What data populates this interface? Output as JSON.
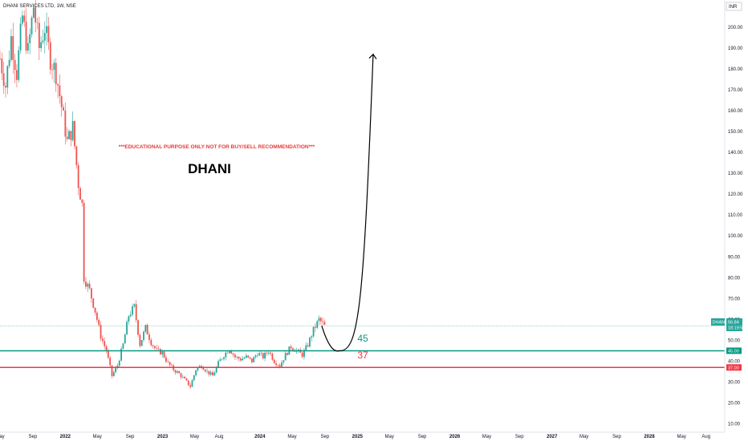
{
  "header": {
    "symbol_title": "DHANI SERVICES LTD, 1W, NSE",
    "currency": "INR"
  },
  "annotations": {
    "disclaimer": "***EDUCATIONAL PURPOSE ONLY NOT FOR BUY/SELL RECOMMENDATION***",
    "title": "DHANI",
    "support_label": "45",
    "stop_label": "37"
  },
  "price_tags": {
    "current_symbol": "DHANI",
    "current_price": "56.84",
    "countdown": "18:19:52",
    "support_price": "45.00",
    "stop_price": "37.00"
  },
  "colors": {
    "up": "#26a69a",
    "down": "#ef5350",
    "support_line": "#089981",
    "stop_line": "#f23645",
    "disclaimer": "#e53935",
    "projection": "#000000"
  },
  "chart_data": {
    "type": "candlestick",
    "title": "DHANI",
    "symbol": "DHANI SERVICES LTD, 1W, NSE",
    "currency": "INR",
    "y_ticks": [
      10,
      20,
      30,
      40,
      50,
      60,
      70,
      80,
      90,
      100,
      110,
      120,
      130,
      140,
      150,
      160,
      170,
      180,
      190,
      200
    ],
    "y_tick_labels": [
      "10.00",
      "20.00",
      "30.00",
      "40.00",
      "50.00",
      "60.00",
      "70.00",
      "80.00",
      "90.00",
      "100.00",
      "110.00",
      "120.00",
      "130.00",
      "140.00",
      "150.00",
      "160.00",
      "170.00",
      "180.00",
      "190.00",
      "200.00"
    ],
    "ylim": [
      6,
      213
    ],
    "x_range": [
      "2021-05-01",
      "2028-10-10"
    ],
    "x_ticks": [
      {
        "date": "2021-05-01",
        "label": "May"
      },
      {
        "date": "2021-09-01",
        "label": "Sep"
      },
      {
        "date": "2022-01-01",
        "label": "2022",
        "year": true
      },
      {
        "date": "2022-05-01",
        "label": "May"
      },
      {
        "date": "2022-09-01",
        "label": "Sep"
      },
      {
        "date": "2023-01-01",
        "label": "2023",
        "year": true
      },
      {
        "date": "2023-05-01",
        "label": "May"
      },
      {
        "date": "2023-08-01",
        "label": "Aug"
      },
      {
        "date": "2024-01-01",
        "label": "2024",
        "year": true
      },
      {
        "date": "2024-05-01",
        "label": "May"
      },
      {
        "date": "2024-09-01",
        "label": "Sep"
      },
      {
        "date": "2025-01-01",
        "label": "2025",
        "year": true
      },
      {
        "date": "2025-05-01",
        "label": "May"
      },
      {
        "date": "2025-09-01",
        "label": "Sep"
      },
      {
        "date": "2026-01-01",
        "label": "2026",
        "year": true
      },
      {
        "date": "2026-05-01",
        "label": "May"
      },
      {
        "date": "2026-09-01",
        "label": "Sep"
      },
      {
        "date": "2027-01-01",
        "label": "2027",
        "year": true
      },
      {
        "date": "2027-05-01",
        "label": "May"
      },
      {
        "date": "2027-09-01",
        "label": "Sep"
      },
      {
        "date": "2028-01-01",
        "label": "2028",
        "year": true
      },
      {
        "date": "2028-05-01",
        "label": "May"
      },
      {
        "date": "2028-08-01",
        "label": "Aug"
      }
    ],
    "price_path": [
      [
        "2021-05-01",
        185
      ],
      [
        "2021-05-22",
        172
      ],
      [
        "2021-06-12",
        195
      ],
      [
        "2021-07-03",
        178
      ],
      [
        "2021-07-24",
        205
      ],
      [
        "2021-08-14",
        188
      ],
      [
        "2021-09-04",
        210
      ],
      [
        "2021-09-25",
        190
      ],
      [
        "2021-10-16",
        200
      ],
      [
        "2021-11-06",
        185
      ],
      [
        "2021-11-27",
        178
      ],
      [
        "2021-12-18",
        162
      ],
      [
        "2022-01-08",
        145
      ],
      [
        "2022-01-29",
        152
      ],
      [
        "2022-02-19",
        125
      ],
      [
        "2022-03-05",
        115
      ],
      [
        "2022-03-12",
        80
      ],
      [
        "2022-04-02",
        74
      ],
      [
        "2022-04-23",
        64
      ],
      [
        "2022-05-14",
        52
      ],
      [
        "2022-06-04",
        45
      ],
      [
        "2022-06-25",
        33
      ],
      [
        "2022-07-16",
        38
      ],
      [
        "2022-08-06",
        48
      ],
      [
        "2022-08-27",
        62
      ],
      [
        "2022-09-17",
        66
      ],
      [
        "2022-10-08",
        48
      ],
      [
        "2022-10-29",
        56
      ],
      [
        "2022-11-19",
        49
      ],
      [
        "2022-12-10",
        45
      ],
      [
        "2022-12-31",
        44
      ],
      [
        "2023-01-21",
        39
      ],
      [
        "2023-02-11",
        36
      ],
      [
        "2023-03-04",
        34
      ],
      [
        "2023-03-25",
        31
      ],
      [
        "2023-04-15",
        28
      ],
      [
        "2023-05-06",
        36
      ],
      [
        "2023-05-27",
        38
      ],
      [
        "2023-06-17",
        35
      ],
      [
        "2023-07-08",
        33
      ],
      [
        "2023-07-29",
        39
      ],
      [
        "2023-08-19",
        43
      ],
      [
        "2023-09-09",
        46
      ],
      [
        "2023-09-30",
        42
      ],
      [
        "2023-10-21",
        41
      ],
      [
        "2023-11-11",
        42
      ],
      [
        "2023-12-02",
        40
      ],
      [
        "2023-12-23",
        44
      ],
      [
        "2024-01-13",
        42
      ],
      [
        "2024-02-03",
        45
      ],
      [
        "2024-02-24",
        40
      ],
      [
        "2024-03-16",
        38
      ],
      [
        "2024-04-06",
        43
      ],
      [
        "2024-04-27",
        47
      ],
      [
        "2024-05-18",
        45
      ],
      [
        "2024-06-08",
        43
      ],
      [
        "2024-06-29",
        48
      ],
      [
        "2024-07-20",
        55
      ],
      [
        "2024-08-10",
        60
      ],
      [
        "2024-08-31",
        56.84
      ]
    ],
    "levels": [
      {
        "name": "45",
        "value": 45
      },
      {
        "name": "37",
        "value": 37
      }
    ],
    "last_price": 56.84,
    "projection": {
      "from": [
        "2024-08-20",
        57
      ],
      "trough": [
        "2024-10-25",
        45
      ],
      "to": [
        "2025-03-01",
        187
      ]
    }
  }
}
